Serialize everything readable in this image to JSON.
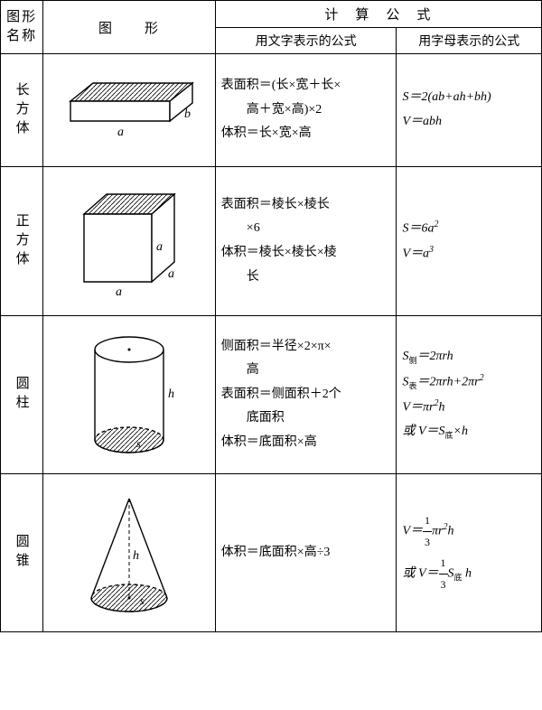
{
  "header": {
    "name": "图形\n名称",
    "shape": "图　　形",
    "formula": "计　算　公　式",
    "text_formula": "用文字表示的公式",
    "letter_formula": "用字母表示的公式"
  },
  "rows": [
    {
      "name": "长方体",
      "text_formula_html": "表面积＝(长×宽＋长×<br>　　高＋宽×高)×2<br>体积＝长×宽×高",
      "letter_formula_html": "<i>S</i>＝2(<i>ab</i>+<i>ah</i>+<i>bh</i>)<br><i>V</i>＝<i>abh</i>",
      "svg": {
        "type": "cuboid",
        "labels": {
          "a": "a",
          "b": "b"
        }
      }
    },
    {
      "name": "正方体",
      "text_formula_html": "表面积＝棱长×棱长<br>　　×6<br>体积＝棱长×棱长×棱<br>　　长",
      "letter_formula_html": "<i>S</i>＝6<i>a</i><sup>2</sup><br><i>V</i>＝<i>a</i><sup>3</sup>",
      "svg": {
        "type": "cube",
        "labels": {
          "a": "a"
        }
      }
    },
    {
      "name": "圆柱",
      "text_formula_html": "侧面积＝半径×2×π×<br>　　高<br>表面积＝侧面积＋2个<br>　　底面积<br>体积＝底面积×高",
      "letter_formula_html": "<i>S</i><sub>侧</sub>＝2π<i>rh</i><br><i>S</i><sub>表</sub>＝2π<i>rh</i>+2π<i>r</i><sup>2</sup><br><i>V</i>＝π<i>r</i><sup>2</sup><i>h</i><br>或 <i>V</i>＝<i>S</i><sub>底</sub>×<i>h</i>",
      "svg": {
        "type": "cylinder",
        "labels": {
          "h": "h",
          "s": "s"
        }
      }
    },
    {
      "name": "圆锥",
      "text_formula_html": "体积＝底面积×高÷3",
      "letter_formula_html": "<i>V</i>＝<span class='frac'><span class='n'>1</span><span class='d'>3</span></span>π<i>r</i><sup>2</sup><i>h</i><br>或 <i>V</i>＝<span class='frac'><span class='n'>1</span><span class='d'>3</span></span><i>S</i><sub>底</sub> <i>h</i>",
      "svg": {
        "type": "cone",
        "labels": {
          "h": "h",
          "s": "s"
        }
      }
    }
  ],
  "style": {
    "stroke": "#000",
    "hatch_stroke": "#000",
    "stroke_width": 1.4,
    "font": "italic 14px serif"
  }
}
